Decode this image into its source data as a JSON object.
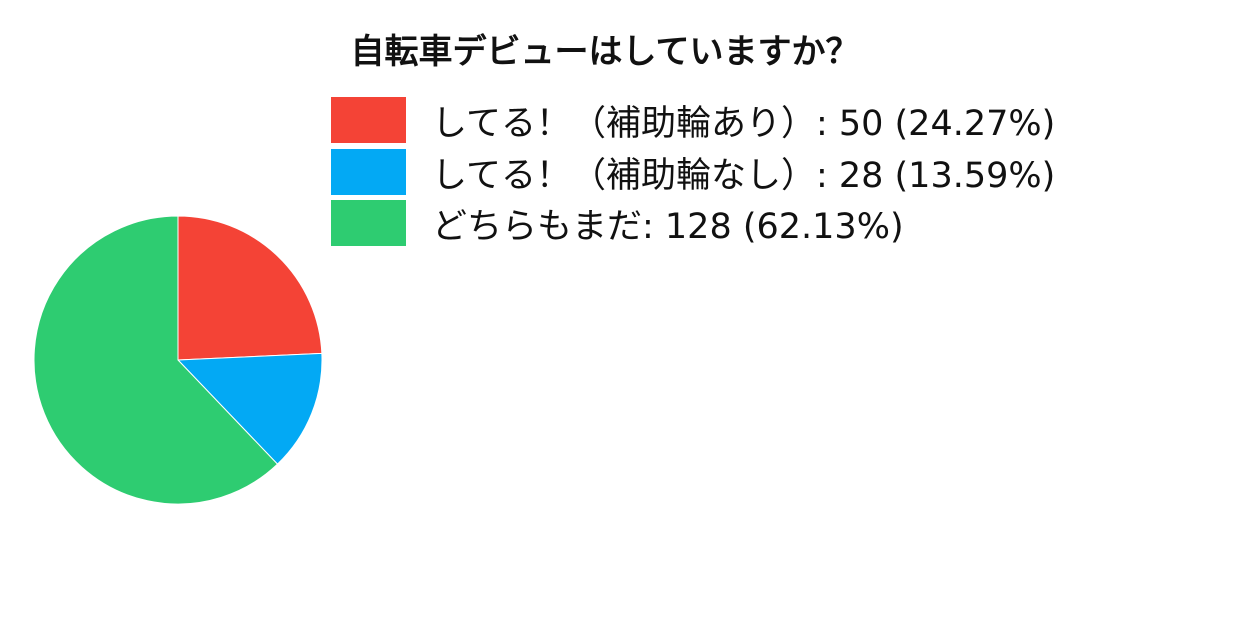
{
  "chart_data": {
    "type": "pie",
    "title": "自転車デビューはしていますか？",
    "legend_position": "top-right",
    "slices": [
      {
        "label": "してる！（補助輪あり）",
        "value": 50,
        "percent": "24.27%",
        "color": "#F44336"
      },
      {
        "label": "してる！（補助輪なし）",
        "value": 28,
        "percent": "13.59%",
        "color": "#03A9F4"
      },
      {
        "label": "どちらもまだ",
        "value": 128,
        "percent": "62.13%",
        "color": "#2ECC71"
      }
    ]
  }
}
